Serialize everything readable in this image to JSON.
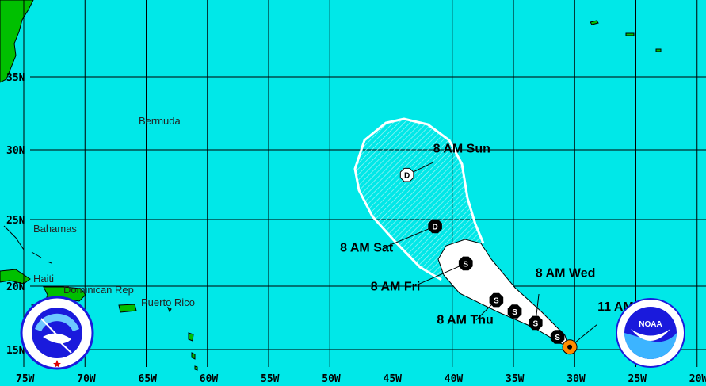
{
  "map": {
    "ocean_color": "#00e8e8",
    "land_color": "#00c000",
    "cone_day1_3_color": "#ffffff",
    "lon_labels": [
      "75W",
      "70W",
      "65W",
      "60W",
      "55W",
      "50W",
      "45W",
      "40W",
      "35W",
      "30W",
      "25W",
      "20W"
    ],
    "lat_labels": [
      "15N",
      "20N",
      "25N",
      "30N",
      "35N"
    ],
    "places": {
      "bermuda": "Bermuda",
      "bahamas": "Bahamas",
      "haiti": "Haiti",
      "dominican_rep": "Dominican Rep",
      "puerto_rico": "Puerto Rico"
    },
    "logos": {
      "nws": "NATIONAL WEATHER SERVICE",
      "noaa": "NOAA",
      "noaa_ring": "NATIONAL OCEANIC AND ATMOSPHERIC ADMINISTRATION · U.S. DEPARTMENT OF COMMERCE"
    }
  },
  "track": [
    {
      "label": "11 AM Tue",
      "lon": -30.4,
      "lat": 15.2,
      "symbol": "current",
      "color": "#ff8c00"
    },
    {
      "label": "",
      "lon": -31.4,
      "lat": 16.0,
      "symbol": "S"
    },
    {
      "label": "8 AM Wed",
      "lon": -33.2,
      "lat": 17.1,
      "symbol": "S"
    },
    {
      "label": "",
      "lon": -34.9,
      "lat": 18.0,
      "symbol": "S"
    },
    {
      "label": "8 AM Thu",
      "lon": -36.4,
      "lat": 18.9,
      "symbol": "S"
    },
    {
      "label": "8 AM Fri",
      "lon": -38.9,
      "lat": 21.7,
      "symbol": "S"
    },
    {
      "label": "8 AM Sat",
      "lon": -41.4,
      "lat": 24.5,
      "symbol": "D"
    },
    {
      "label": "8 AM Sun",
      "lon": -43.7,
      "lat": 28.2,
      "symbol": "D",
      "hollow": true
    }
  ]
}
